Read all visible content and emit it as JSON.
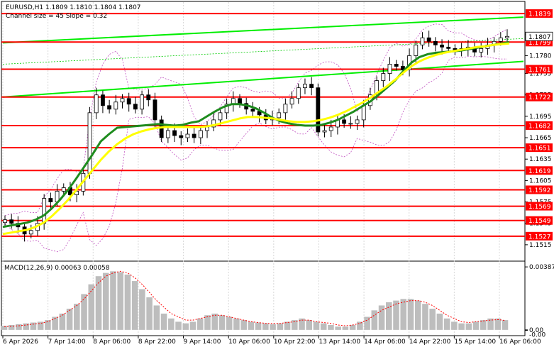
{
  "header": {
    "symbol_line": "EURUSD,H1  1.1809 1.1810 1.1804 1.1807",
    "channel_line": "Channel size = 45 Slope = 0.32"
  },
  "macd": {
    "label": "MACD(12,26,9) 0.00063 0.00058"
  },
  "colors": {
    "level_line": "#ff0000",
    "level_tag": "#ff0000",
    "channel": "#00ee00",
    "channel_mid": "#00cc00",
    "ma_fast": "#1e8c1e",
    "ma_slow": "#ffff00",
    "bollinger": "#c050c0",
    "candles": "#000000",
    "macd_hist": "#bdbdbd",
    "macd_signal": "#ff0000"
  },
  "chart_data": {
    "type": "candlestick",
    "price_ylim": [
      1.1495,
      1.1855
    ],
    "price_ticks": [
      "1.1810",
      "1.1780",
      "1.1755",
      "1.1725",
      "1.1695",
      "1.1665",
      "1.1635",
      "1.1605",
      "1.1575",
      "1.1545",
      "1.1515"
    ],
    "levels": [
      "1.1839",
      "1.1799",
      "1.1761",
      "1.1722",
      "1.1682",
      "1.1651",
      "1.1619",
      "1.1592",
      "1.1569",
      "1.1549",
      "1.1527"
    ],
    "current_price": "1.1807",
    "x_labels": [
      "6 Apr 2026",
      "7 Apr 14:00",
      "8 Apr 06:00",
      "8 Apr 22:00",
      "9 Apr 14:00",
      "10 Apr 06:00",
      "10 Apr 22:00",
      "13 Apr 14:00",
      "14 Apr 06:00",
      "14 Apr 22:00",
      "15 Apr 14:00",
      "16 Apr 06:00"
    ],
    "close": [
      1.155,
      1.1545,
      1.154,
      1.153,
      1.1535,
      1.1545,
      1.158,
      1.1575,
      1.159,
      1.1595,
      1.1585,
      1.159,
      1.1615,
      1.17,
      1.1725,
      1.171,
      1.1705,
      1.1715,
      1.172,
      1.1712,
      1.1705,
      1.1725,
      1.1718,
      1.169,
      1.1665,
      1.1675,
      1.1668,
      1.1665,
      1.167,
      1.1665,
      1.1675,
      1.168,
      1.169,
      1.17,
      1.1712,
      1.172,
      1.1713,
      1.1705,
      1.1702,
      1.1697,
      1.169,
      1.1693,
      1.17,
      1.1712,
      1.172,
      1.1735,
      1.174,
      1.1735,
      1.1673,
      1.1675,
      1.168,
      1.169,
      1.1685,
      1.1685,
      1.169,
      1.171,
      1.1725,
      1.1745,
      1.1755,
      1.1768,
      1.1765,
      1.176,
      1.178,
      1.1795,
      1.1805,
      1.18,
      1.1795,
      1.1792,
      1.179,
      1.1788,
      1.179,
      1.1792,
      1.1785,
      1.179,
      1.1795,
      1.18,
      1.1805,
      1.1807
    ],
    "price_series": [
      {
        "name": "MA fast",
        "values": [
          1.154,
          1.1542,
          1.1544,
          1.1546,
          1.155,
          1.1556,
          1.1566,
          1.1578,
          1.1592,
          1.1608,
          1.1625,
          1.1642,
          1.166,
          1.167,
          1.1679,
          1.168,
          1.1681,
          1.1682,
          1.1683,
          1.1684,
          1.1683,
          1.1682,
          1.1683,
          1.1686,
          1.1688,
          1.1695,
          1.1702,
          1.1708,
          1.1712,
          1.1712,
          1.171,
          1.1706,
          1.17,
          1.1693,
          1.1688,
          1.1685,
          1.1683,
          1.1682,
          1.1682,
          1.1683,
          1.1686,
          1.169,
          1.1696,
          1.1702,
          1.1709,
          1.1716,
          1.1725,
          1.1735,
          1.1745,
          1.1758,
          1.177,
          1.1778,
          1.1782,
          1.1784,
          1.1785,
          1.1786,
          1.1787,
          1.1789,
          1.1791,
          1.1793,
          1.1795,
          1.1797,
          1.1799
        ]
      },
      {
        "name": "MA slow",
        "values": [
          1.153,
          1.1532,
          1.1534,
          1.1536,
          1.154,
          1.1546,
          1.1555,
          1.1566,
          1.1578,
          1.1592,
          1.1606,
          1.162,
          1.1634,
          1.1646,
          1.1656,
          1.1664,
          1.167,
          1.1674,
          1.1677,
          1.1679,
          1.168,
          1.168,
          1.168,
          1.168,
          1.168,
          1.1681,
          1.1683,
          1.1686,
          1.1689,
          1.1692,
          1.1694,
          1.1694,
          1.1693,
          1.1692,
          1.169,
          1.1688,
          1.1687,
          1.1687,
          1.1688,
          1.169,
          1.1693,
          1.1697,
          1.1702,
          1.1708,
          1.1714,
          1.1721,
          1.1729,
          1.1737,
          1.1746,
          1.1756,
          1.1765,
          1.1772,
          1.1777,
          1.1781,
          1.1784,
          1.1786,
          1.1788,
          1.179,
          1.1792,
          1.1793,
          1.1795,
          1.1796,
          1.1797
        ]
      }
    ],
    "channel": {
      "upper": [
        [
          0,
          1.1798
        ],
        [
          1,
          1.1834
        ]
      ],
      "middle": [
        [
          0,
          1.1768
        ],
        [
          1,
          1.1804
        ]
      ],
      "lower": [
        [
          0,
          1.1722
        ],
        [
          1,
          1.1772
        ]
      ]
    },
    "macd": {
      "ylim": [
        -5e-05,
        0.00405
      ],
      "ticks": [
        "0.00387",
        "0.00",
        "-0.00"
      ],
      "histogram": [
        0.00025,
        0.0003,
        0.00035,
        0.0004,
        0.00045,
        0.0005,
        0.0006,
        0.0008,
        0.001,
        0.0013,
        0.0016,
        0.0022,
        0.0028,
        0.0033,
        0.0035,
        0.0036,
        0.00355,
        0.0034,
        0.003,
        0.0025,
        0.002,
        0.0015,
        0.001,
        0.0007,
        0.0005,
        0.0004,
        0.0005,
        0.0007,
        0.0009,
        0.001,
        0.0009,
        0.0008,
        0.0007,
        0.0006,
        0.0005,
        0.00045,
        0.0004,
        0.00035,
        0.0004,
        0.0005,
        0.0006,
        0.0007,
        0.0006,
        0.0005,
        0.0004,
        0.0003,
        0.0002,
        0.0002,
        0.0003,
        0.0005,
        0.0008,
        0.0012,
        0.0015,
        0.0017,
        0.0018,
        0.0019,
        0.0019,
        0.0018,
        0.0016,
        0.0013,
        0.001,
        0.0007,
        0.0005,
        0.0004,
        0.0004,
        0.0005,
        0.0006,
        0.0007,
        0.0007,
        0.0006
      ],
      "signal": [
        0.0002,
        0.00022,
        0.00025,
        0.0003,
        0.00035,
        0.0004,
        0.0005,
        0.0007,
        0.0009,
        0.0012,
        0.0015,
        0.0019,
        0.0024,
        0.0029,
        0.0033,
        0.0035,
        0.0036,
        0.0035,
        0.0032,
        0.0028,
        0.0023,
        0.0018,
        0.0014,
        0.001,
        0.0008,
        0.0006,
        0.0006,
        0.0007,
        0.0008,
        0.0009,
        0.0009,
        0.0008,
        0.0007,
        0.0006,
        0.0005,
        0.00045,
        0.0004,
        0.0004,
        0.0004,
        0.00045,
        0.0005,
        0.0006,
        0.0006,
        0.0005,
        0.00045,
        0.0004,
        0.0003,
        0.00025,
        0.0003,
        0.0004,
        0.0006,
        0.0009,
        0.0012,
        0.0014,
        0.0016,
        0.0017,
        0.0018,
        0.0018,
        0.0017,
        0.0015,
        0.0012,
        0.0009,
        0.0007,
        0.0005,
        0.00045,
        0.0005,
        0.00055,
        0.0006,
        0.00063,
        0.00058
      ]
    }
  }
}
